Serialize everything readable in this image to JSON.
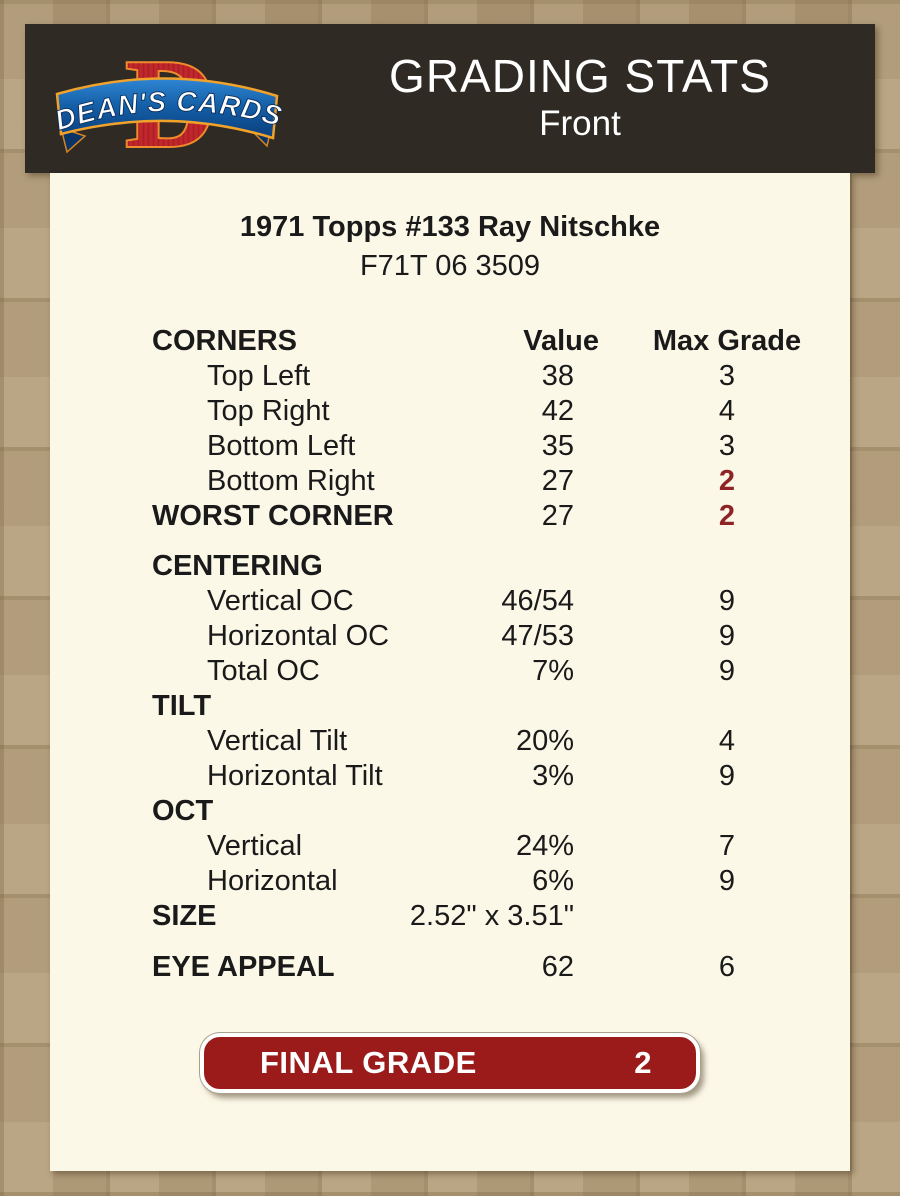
{
  "header": {
    "title": "GRADING STATS",
    "subtitle": "Front",
    "logo": {
      "letter": "D",
      "banner_text": "DEAN'S CARDS"
    }
  },
  "card": {
    "title": "1971 Topps #133 Ray Nitschke",
    "code": "F71T 06 3509"
  },
  "table": {
    "rows": [
      {
        "label": "CORNERS",
        "value": "Value",
        "grade": "Max Grade",
        "header": true
      },
      {
        "label": "Top Left",
        "value": "38",
        "grade": "3",
        "indent": true
      },
      {
        "label": "Top Right",
        "value": "42",
        "grade": "4",
        "indent": true
      },
      {
        "label": "Bottom Left",
        "value": "35",
        "grade": "3",
        "indent": true
      },
      {
        "label": "Bottom Right",
        "value": "27",
        "grade": "2",
        "indent": true,
        "grade_red": true
      },
      {
        "label": "WORST CORNER",
        "value": "27",
        "grade": "2",
        "label_bold": true,
        "grade_red": true
      },
      {
        "spacer": 15
      },
      {
        "label": "CENTERING",
        "value": "",
        "grade": "",
        "label_bold": true
      },
      {
        "label": "Vertical OC",
        "value": "46/54",
        "grade": "9",
        "indent": true
      },
      {
        "label": "Horizontal OC",
        "value": "47/53",
        "grade": "9",
        "indent": true
      },
      {
        "label": "Total OC",
        "value": "7%",
        "grade": "9",
        "indent": true
      },
      {
        "label": "TILT",
        "value": "",
        "grade": "",
        "label_bold": true
      },
      {
        "label": "Vertical Tilt",
        "value": "20%",
        "grade": "4",
        "indent": true
      },
      {
        "label": "Horizontal Tilt",
        "value": "3%",
        "grade": "9",
        "indent": true
      },
      {
        "label": "OCT",
        "value": "",
        "grade": "",
        "label_bold": true
      },
      {
        "label": "Vertical",
        "value": "24%",
        "grade": "7",
        "indent": true
      },
      {
        "label": "Horizontal",
        "value": "6%",
        "grade": "9",
        "indent": true
      },
      {
        "label": "SIZE",
        "value": "2.52\" x 3.51\"",
        "grade": "",
        "label_bold": true
      },
      {
        "spacer": 16
      },
      {
        "label": "EYE APPEAL",
        "value": "62",
        "grade": "6",
        "label_bold": true
      }
    ]
  },
  "final_grade": {
    "label": "FINAL GRADE",
    "value": "2"
  },
  "colors": {
    "page_bg": "#b19b78",
    "header_bg": "#2f2a23",
    "panel_bg": "#fcf8e8",
    "red_text": "#8e2425",
    "grade_red": "#9b1b1b",
    "logo_red": "#c1272d",
    "logo_orange": "#ef8b2c",
    "logo_blue_dark": "#0a3e7c",
    "logo_blue_light": "#2f86d4"
  }
}
